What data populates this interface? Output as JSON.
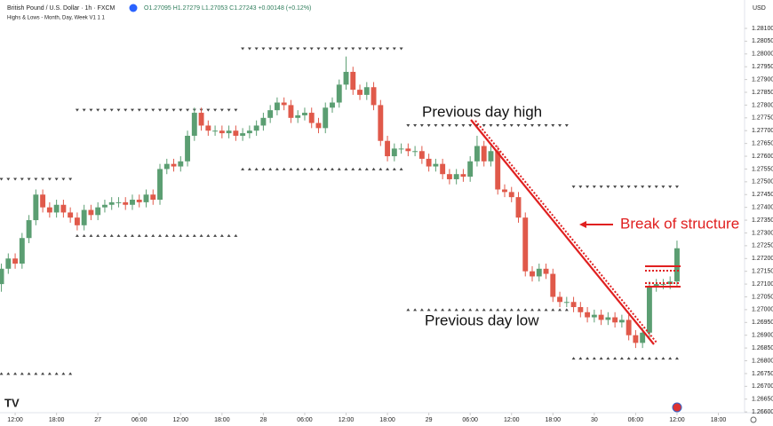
{
  "chart_data": {
    "type": "candlestick",
    "title": "British Pound / U.S. Dollar · 1h · FXCM",
    "ohlc_readout": "O1.27095 H1.27279 L1.27053 C1.27243 +0.00148 (+0.12%)",
    "indicator": "Highs & Lows - Month, Day, Week V1 1 1",
    "currency": "USD",
    "annotations": [
      "Previous day high",
      "Previous day low",
      "Break of structure"
    ],
    "up_color": "#5b9e72",
    "down_color": "#e0594a",
    "level_color": "#444444",
    "grid": false,
    "open": [
      1.271,
      1.2716,
      1.272,
      1.2718,
      1.2728,
      1.2735,
      1.2745,
      1.274,
      1.2738,
      1.2741,
      1.2738,
      1.2736,
      1.2733,
      1.2739,
      1.2737,
      1.274,
      1.2741,
      1.2742,
      1.2742,
      1.2741,
      1.2743,
      1.2742,
      1.2745,
      1.2743,
      1.2755,
      1.2757,
      1.2756,
      1.2758,
      1.2768,
      1.2777,
      1.2772,
      1.277,
      1.277,
      1.2769,
      1.277,
      1.2768,
      1.2769,
      1.277,
      1.2772,
      1.2775,
      1.2778,
      1.2781,
      1.278,
      1.2775,
      1.2776,
      1.2777,
      1.2773,
      1.2771,
      1.2779,
      1.2781,
      1.2788,
      1.2793,
      1.2786,
      1.2784,
      1.2787,
      1.278,
      1.2766,
      1.276,
      1.2763,
      1.2763,
      1.2762,
      1.2762,
      1.2759,
      1.2756,
      1.2757,
      1.2753,
      1.2751,
      1.2753,
      1.2752,
      1.2758,
      1.2764,
      1.2758,
      1.2762,
      1.2747,
      1.2746,
      1.2744,
      1.2736,
      1.2715,
      1.2713,
      1.2716,
      1.2714,
      1.2705,
      1.2703,
      1.2703,
      1.2701,
      1.2699,
      1.2697,
      1.2698,
      1.2696,
      1.2697,
      1.2695,
      1.2696,
      1.269,
      1.2687,
      1.2691,
      1.2709,
      1.271,
      1.271,
      1.2711
    ],
    "high": [
      1.2718,
      1.2722,
      1.2722,
      1.273,
      1.2737,
      1.2747,
      1.2747,
      1.2742,
      1.2743,
      1.2743,
      1.274,
      1.2738,
      1.2741,
      1.2741,
      1.2742,
      1.2743,
      1.2744,
      1.2744,
      1.2744,
      1.2745,
      1.2745,
      1.2747,
      1.2747,
      1.2757,
      1.2759,
      1.2759,
      1.276,
      1.277,
      1.2779,
      1.2779,
      1.2774,
      1.2772,
      1.2772,
      1.2772,
      1.2772,
      1.2771,
      1.2772,
      1.2774,
      1.2777,
      1.278,
      1.2783,
      1.2783,
      1.2782,
      1.2778,
      1.2779,
      1.2779,
      1.2775,
      1.2781,
      1.2783,
      1.279,
      1.2799,
      1.2795,
      1.2788,
      1.2789,
      1.2789,
      1.2782,
      1.2768,
      1.2765,
      1.2765,
      1.2765,
      1.2764,
      1.2764,
      1.2761,
      1.2759,
      1.2759,
      1.2755,
      1.2755,
      1.2755,
      1.276,
      1.2768,
      1.2766,
      1.2764,
      1.2764,
      1.2749,
      1.2748,
      1.2746,
      1.2738,
      1.2717,
      1.2718,
      1.2718,
      1.2716,
      1.2707,
      1.2705,
      1.2705,
      1.2703,
      1.2701,
      1.27,
      1.27,
      1.2699,
      1.2699,
      1.2698,
      1.2698,
      1.2692,
      1.2693,
      1.2711,
      1.2712,
      1.2712,
      1.2713,
      1.2727
    ],
    "low": [
      1.2707,
      1.2714,
      1.2716,
      1.2716,
      1.2726,
      1.2733,
      1.2738,
      1.2736,
      1.2736,
      1.2736,
      1.2734,
      1.2731,
      1.2731,
      1.2735,
      1.2735,
      1.2738,
      1.2739,
      1.274,
      1.2739,
      1.2739,
      1.274,
      1.274,
      1.2741,
      1.2741,
      1.2753,
      1.2754,
      1.2754,
      1.2756,
      1.2766,
      1.277,
      1.2768,
      1.2768,
      1.2767,
      1.2767,
      1.2766,
      1.2766,
      1.2767,
      1.2768,
      1.277,
      1.2773,
      1.2776,
      1.2778,
      1.2773,
      1.2773,
      1.2774,
      1.2771,
      1.2769,
      1.2769,
      1.2777,
      1.2779,
      1.2786,
      1.2784,
      1.2782,
      1.2782,
      1.2778,
      1.2764,
      1.2758,
      1.2758,
      1.2761,
      1.276,
      1.276,
      1.2757,
      1.2754,
      1.2754,
      1.2751,
      1.2749,
      1.2749,
      1.275,
      1.275,
      1.2756,
      1.2756,
      1.2756,
      1.2745,
      1.2744,
      1.2742,
      1.2734,
      1.2713,
      1.2711,
      1.2711,
      1.2712,
      1.2703,
      1.2701,
      1.2701,
      1.2699,
      1.2697,
      1.2695,
      1.2695,
      1.2694,
      1.2694,
      1.2693,
      1.2693,
      1.2688,
      1.2685,
      1.2685,
      1.2689,
      1.2707,
      1.2708,
      1.2708,
      1.2709
    ],
    "close": [
      1.2716,
      1.272,
      1.2718,
      1.2728,
      1.2735,
      1.2745,
      1.274,
      1.2738,
      1.2741,
      1.2738,
      1.2736,
      1.2733,
      1.2739,
      1.2737,
      1.274,
      1.2741,
      1.2742,
      1.2742,
      1.2741,
      1.2743,
      1.2742,
      1.2745,
      1.2743,
      1.2755,
      1.2757,
      1.2756,
      1.2758,
      1.2768,
      1.2777,
      1.2772,
      1.277,
      1.277,
      1.2769,
      1.277,
      1.2768,
      1.2769,
      1.277,
      1.2772,
      1.2775,
      1.2778,
      1.2781,
      1.278,
      1.2775,
      1.2776,
      1.2777,
      1.2773,
      1.2771,
      1.2779,
      1.2781,
      1.2788,
      1.2793,
      1.2786,
      1.2784,
      1.2787,
      1.278,
      1.2766,
      1.276,
      1.2763,
      1.2763,
      1.2762,
      1.2762,
      1.2759,
      1.2756,
      1.2757,
      1.2753,
      1.2751,
      1.2753,
      1.2752,
      1.2758,
      1.2764,
      1.2758,
      1.2762,
      1.2747,
      1.2746,
      1.2744,
      1.2736,
      1.2715,
      1.2713,
      1.2716,
      1.2714,
      1.2705,
      1.2703,
      1.2703,
      1.2701,
      1.2699,
      1.2697,
      1.2698,
      1.2696,
      1.2697,
      1.2695,
      1.2696,
      1.269,
      1.2687,
      1.2691,
      1.2709,
      1.271,
      1.271,
      1.2711,
      1.2724
    ],
    "day_levels": [
      {
        "high": 1.2751,
        "low": 1.2675,
        "start": 0,
        "end": 10
      },
      {
        "high": 1.2778,
        "low": 1.2729,
        "start": 11,
        "end": 34
      },
      {
        "high": 1.2802,
        "low": 1.2755,
        "start": 35,
        "end": 58
      },
      {
        "high": 1.2772,
        "low": 1.27,
        "start": 59,
        "end": 82
      },
      {
        "high": 1.2748,
        "low": 1.2681,
        "start": 83,
        "end": 98
      }
    ],
    "xlim": [
      -0.2,
      107.8
    ],
    "xticks": [
      {
        "value": 2,
        "label": "12:00"
      },
      {
        "value": 8,
        "label": "18:00"
      },
      {
        "value": 14,
        "label": "27"
      },
      {
        "value": 20,
        "label": "06:00"
      },
      {
        "value": 26,
        "label": "12:00"
      },
      {
        "value": 32,
        "label": "18:00"
      },
      {
        "value": 38,
        "label": "28"
      },
      {
        "value": 44,
        "label": "06:00"
      },
      {
        "value": 50,
        "label": "12:00"
      },
      {
        "value": 56,
        "label": "18:00"
      },
      {
        "value": 62,
        "label": "29"
      },
      {
        "value": 68,
        "label": "06:00"
      },
      {
        "value": 74,
        "label": "12:00"
      },
      {
        "value": 80,
        "label": "18:00"
      },
      {
        "value": 86,
        "label": "30"
      },
      {
        "value": 92,
        "label": "06:00"
      },
      {
        "value": 98,
        "label": "12:00"
      },
      {
        "value": 104,
        "label": "18:00"
      }
    ],
    "ylim": [
      1.26597,
      1.28211
    ],
    "yticks": [
      {
        "value": 1.266,
        "label": "1.26600"
      },
      {
        "value": 1.2665,
        "label": "1.26650"
      },
      {
        "value": 1.267,
        "label": "1.26700"
      },
      {
        "value": 1.2675,
        "label": "1.26750"
      },
      {
        "value": 1.268,
        "label": "1.26800"
      },
      {
        "value": 1.2685,
        "label": "1.26850"
      },
      {
        "value": 1.269,
        "label": "1.26900"
      },
      {
        "value": 1.2695,
        "label": "1.26950"
      },
      {
        "value": 1.27,
        "label": "1.27000"
      },
      {
        "value": 1.2705,
        "label": "1.27050"
      },
      {
        "value": 1.271,
        "label": "1.27100"
      },
      {
        "value": 1.2715,
        "label": "1.27150"
      },
      {
        "value": 1.272,
        "label": "1.27200"
      },
      {
        "value": 1.2725,
        "label": "1.27250"
      },
      {
        "value": 1.273,
        "label": "1.27300"
      },
      {
        "value": 1.2735,
        "label": "1.27350"
      },
      {
        "value": 1.274,
        "label": "1.27400"
      },
      {
        "value": 1.2745,
        "label": "1.27450"
      },
      {
        "value": 1.275,
        "label": "1.27500"
      },
      {
        "value": 1.2755,
        "label": "1.27550"
      },
      {
        "value": 1.276,
        "label": "1.27600"
      },
      {
        "value": 1.2765,
        "label": "1.27650"
      },
      {
        "value": 1.277,
        "label": "1.27700"
      },
      {
        "value": 1.2775,
        "label": "1.27750"
      },
      {
        "value": 1.278,
        "label": "1.27800"
      },
      {
        "value": 1.2785,
        "label": "1.27850"
      },
      {
        "value": 1.279,
        "label": "1.27900"
      },
      {
        "value": 1.2795,
        "label": "1.27950"
      },
      {
        "value": 1.28,
        "label": "1.28000"
      },
      {
        "value": 1.2805,
        "label": "1.28050"
      },
      {
        "value": 1.281,
        "label": "1.28100"
      }
    ]
  }
}
